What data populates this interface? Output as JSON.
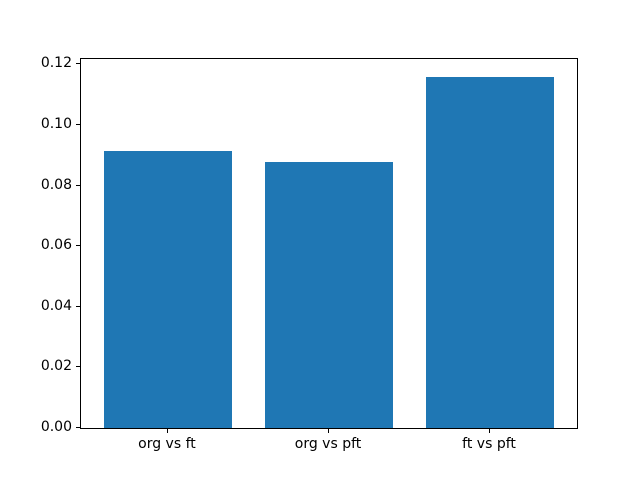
{
  "chart_data": {
    "type": "bar",
    "categories": [
      "org vs ft",
      "org vs pft",
      "ft vs pft"
    ],
    "values": [
      0.0914,
      0.0878,
      0.116
    ],
    "title": "",
    "xlabel": "",
    "ylabel": "",
    "ylim": [
      0,
      0.1218
    ],
    "yticks": [
      0.0,
      0.02,
      0.04,
      0.06,
      0.08,
      0.1,
      0.12
    ],
    "ytick_labels": [
      "0.00",
      "0.02",
      "0.04",
      "0.06",
      "0.08",
      "0.10",
      "0.12"
    ],
    "bar_color": "#1f77b4",
    "bar_width_fraction": 0.8,
    "grid": false,
    "legend": null,
    "background_color": "#ffffff",
    "spine_color": "#000000"
  }
}
